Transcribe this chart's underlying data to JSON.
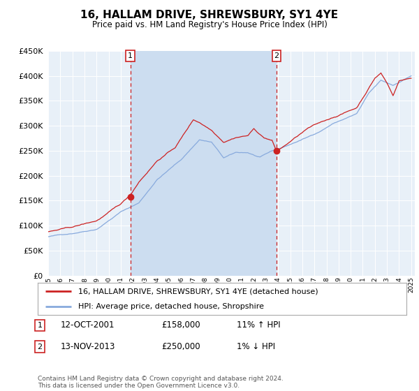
{
  "title": "16, HALLAM DRIVE, SHREWSBURY, SY1 4YE",
  "subtitle": "Price paid vs. HM Land Registry's House Price Index (HPI)",
  "legend_line1": "16, HALLAM DRIVE, SHREWSBURY, SY1 4YE (detached house)",
  "legend_line2": "HPI: Average price, detached house, Shropshire",
  "sale1_date": "12-OCT-2001",
  "sale1_price": "£158,000",
  "sale1_hpi": "11% ↑ HPI",
  "sale1_year": 2001.79,
  "sale1_value": 158000,
  "sale2_date": "13-NOV-2013",
  "sale2_price": "£250,000",
  "sale2_hpi": "1% ↓ HPI",
  "sale2_year": 2013.87,
  "sale2_value": 250000,
  "hpi_line_color": "#88aadd",
  "price_line_color": "#cc2222",
  "dashed_line_color": "#cc2222",
  "plot_bg_color": "#e8f0f8",
  "shade_color": "#ccddf0",
  "ylim": [
    0,
    450000
  ],
  "yticks": [
    0,
    50000,
    100000,
    150000,
    200000,
    250000,
    300000,
    350000,
    400000,
    450000
  ],
  "footnote": "Contains HM Land Registry data © Crown copyright and database right 2024.\nThis data is licensed under the Open Government Licence v3.0."
}
